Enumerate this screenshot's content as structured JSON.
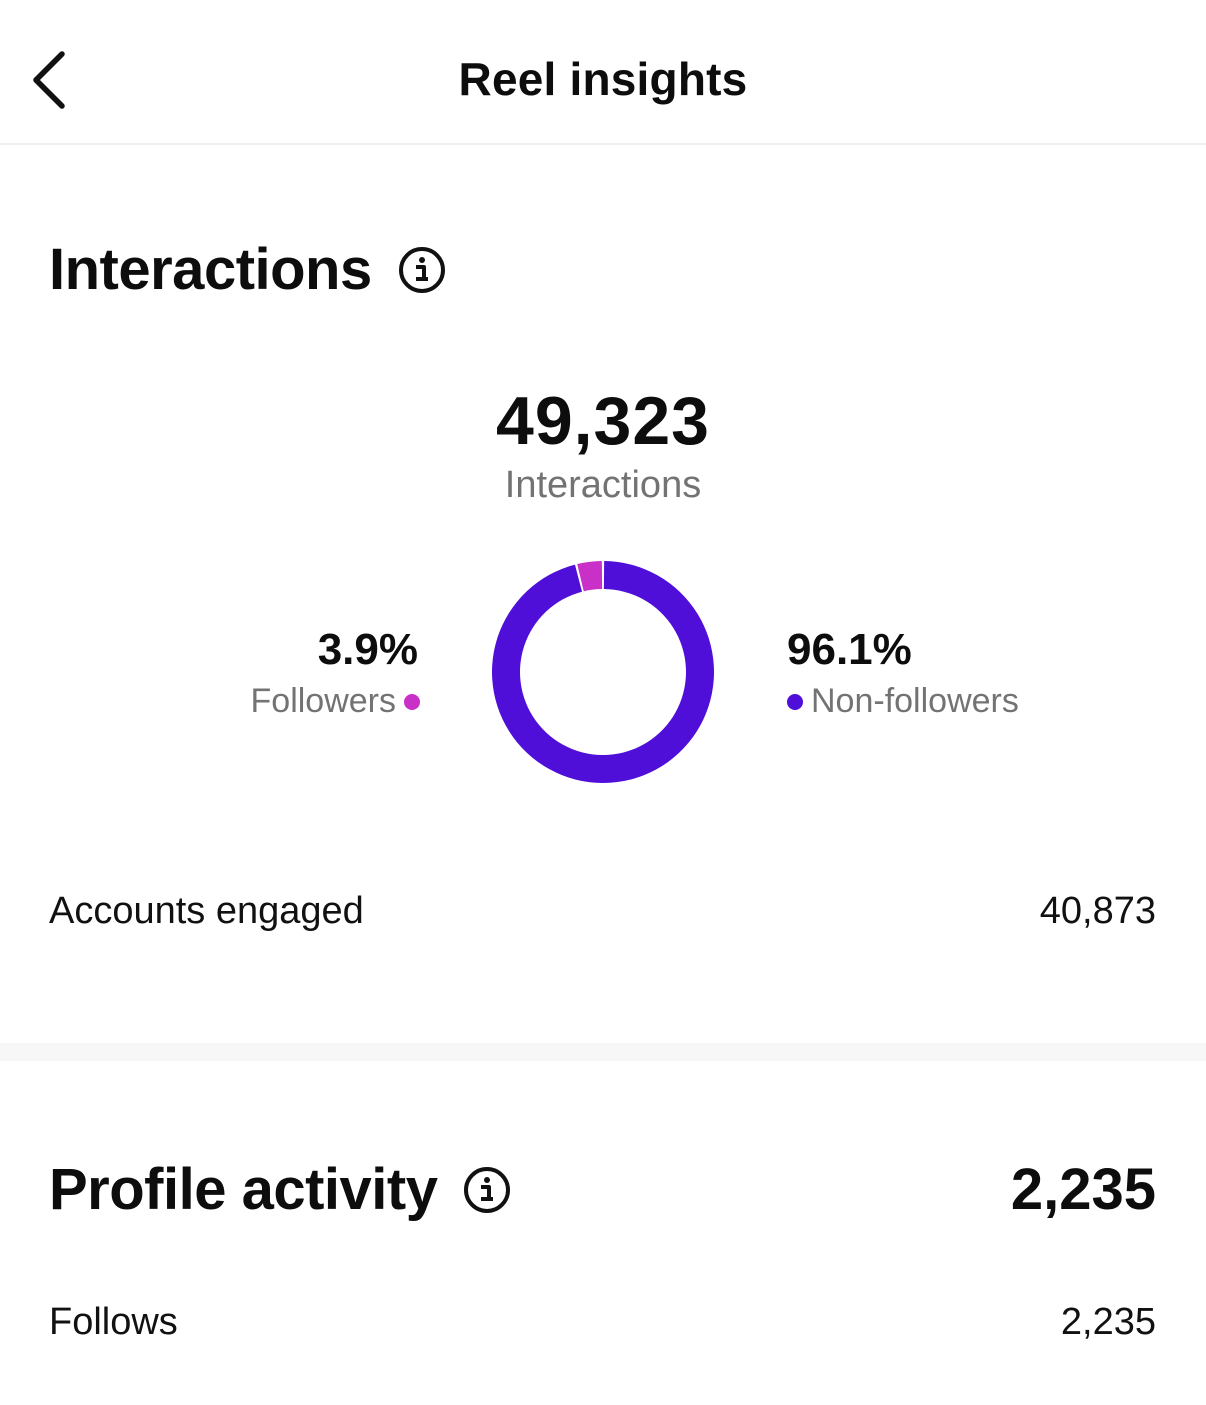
{
  "header": {
    "title": "Reel insights",
    "back_icon": "chevron-left-icon"
  },
  "interactions": {
    "title": "Interactions",
    "total": "49,323",
    "total_label": "Interactions",
    "followers": {
      "pct_label": "3.9%",
      "label": "Followers",
      "color": "#c930c8"
    },
    "non_followers": {
      "pct_label": "96.1%",
      "label": "Non-followers",
      "color": "#4f0fd9"
    },
    "accounts_engaged": {
      "label": "Accounts engaged",
      "value": "40,873"
    }
  },
  "chart_data": {
    "type": "pie",
    "categories": [
      "Followers",
      "Non-followers"
    ],
    "values": [
      3.9,
      96.1
    ],
    "colors": [
      "#c930c8",
      "#4f0fd9"
    ],
    "donut": true
  },
  "profile_activity": {
    "title": "Profile activity",
    "total": "2,235",
    "follows": {
      "label": "Follows",
      "value": "2,235"
    }
  }
}
